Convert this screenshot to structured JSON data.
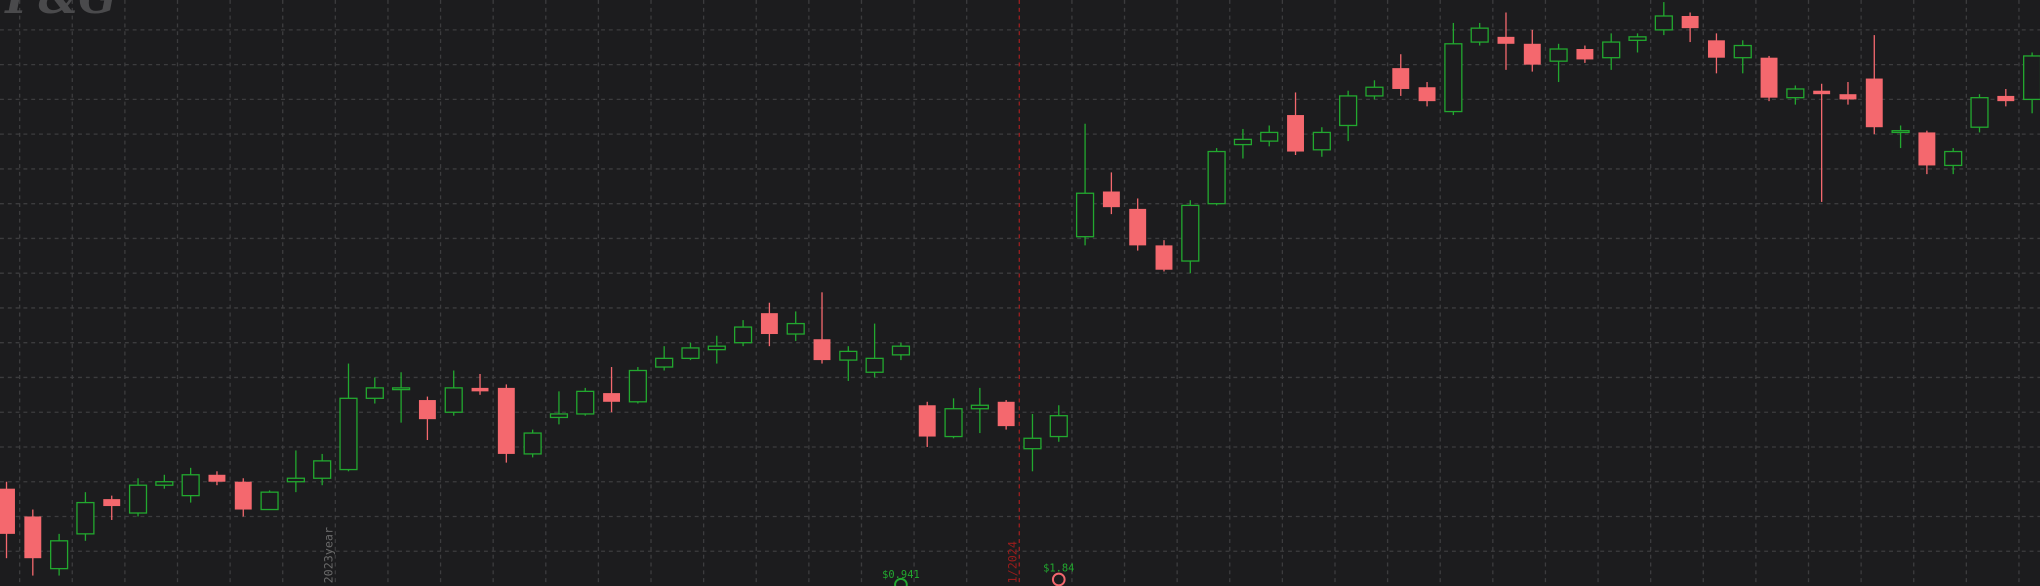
{
  "chart_data": {
    "type": "candlestick",
    "watermark": "P&G",
    "up_color": "#22a82f",
    "down_color": "#f4686e",
    "grid": true,
    "ylim": [
      144,
      160.86
    ],
    "yticks": [
      145,
      146,
      147,
      148,
      149,
      150,
      151,
      152,
      153,
      154,
      155,
      156,
      157,
      158,
      159,
      160
    ],
    "open": [
      146.8,
      146.0,
      144.5,
      145.5,
      146.5,
      146.1,
      146.9,
      146.6,
      147.2,
      147.0,
      146.2,
      147.0,
      147.1,
      147.35,
      149.4,
      149.65,
      149.35,
      149.0,
      149.7,
      149.7,
      147.8,
      148.85,
      148.95,
      149.55,
      149.3,
      150.3,
      150.55,
      150.8,
      151.0,
      151.85,
      151.25,
      151.1,
      150.5,
      150.15,
      150.65,
      149.2,
      148.3,
      149.1,
      149.3,
      147.95,
      148.3,
      154.05,
      155.35,
      154.85,
      153.8,
      153.35,
      155.0,
      156.7,
      156.8,
      157.55,
      156.55,
      157.25,
      158.1,
      158.9,
      158.35,
      157.65,
      159.65,
      159.8,
      159.6,
      159.1,
      159.45,
      159.2,
      159.7,
      160.0,
      160.4,
      159.7,
      159.2,
      159.2,
      158.05,
      158.25,
      158.15,
      158.6,
      157.05,
      157.05,
      156.1,
      157.2,
      158.1,
      158.0
    ],
    "high": [
      147.0,
      146.2,
      145.5,
      146.7,
      146.6,
      147.1,
      147.2,
      147.4,
      147.3,
      147.1,
      146.75,
      147.9,
      147.8,
      150.4,
      150.0,
      150.15,
      149.45,
      150.2,
      150.1,
      149.8,
      148.5,
      149.6,
      149.7,
      150.3,
      150.3,
      150.9,
      151.0,
      151.2,
      151.65,
      152.15,
      151.9,
      152.45,
      150.9,
      151.55,
      151.0,
      149.3,
      149.4,
      149.7,
      149.35,
      148.95,
      149.2,
      157.3,
      155.9,
      155.15,
      153.95,
      155.1,
      156.6,
      157.15,
      157.25,
      158.2,
      157.2,
      158.25,
      158.55,
      159.3,
      158.5,
      160.2,
      160.2,
      160.5,
      160.0,
      159.6,
      159.55,
      159.9,
      159.9,
      160.8,
      160.5,
      159.9,
      159.7,
      159.25,
      158.4,
      158.45,
      158.5,
      159.85,
      157.25,
      157.1,
      156.6,
      158.15,
      158.3,
      159.35
    ],
    "low": [
      144.8,
      144.3,
      144.3,
      145.3,
      145.9,
      146.0,
      146.8,
      146.4,
      146.9,
      146.0,
      146.2,
      146.7,
      146.9,
      147.3,
      149.25,
      148.7,
      148.2,
      148.9,
      149.5,
      147.55,
      147.7,
      148.65,
      148.9,
      149.0,
      149.25,
      150.2,
      150.5,
      150.4,
      150.9,
      150.9,
      151.05,
      150.4,
      149.9,
      150.0,
      150.5,
      148.0,
      148.25,
      148.4,
      148.5,
      147.3,
      148.15,
      153.8,
      154.7,
      153.65,
      153.05,
      153.0,
      154.95,
      156.3,
      156.65,
      156.4,
      156.35,
      156.8,
      158.0,
      158.1,
      157.8,
      157.55,
      159.55,
      158.85,
      158.8,
      158.5,
      159.05,
      158.85,
      159.35,
      159.85,
      159.65,
      158.75,
      158.75,
      157.95,
      157.85,
      155.05,
      157.85,
      157.0,
      156.6,
      155.85,
      155.85,
      157.05,
      157.8,
      157.6
    ],
    "close": [
      145.5,
      144.8,
      145.3,
      146.4,
      146.3,
      146.9,
      147.0,
      147.2,
      147.0,
      146.2,
      146.7,
      147.1,
      147.6,
      149.4,
      149.7,
      149.7,
      148.8,
      149.7,
      149.6,
      147.8,
      148.4,
      148.95,
      149.6,
      149.3,
      150.2,
      150.55,
      150.85,
      150.9,
      151.45,
      151.25,
      151.55,
      150.5,
      150.75,
      150.55,
      150.9,
      148.3,
      149.1,
      149.2,
      148.6,
      148.25,
      148.9,
      155.3,
      154.9,
      153.8,
      153.1,
      154.95,
      156.5,
      156.85,
      157.05,
      156.5,
      157.05,
      158.1,
      158.35,
      158.3,
      157.95,
      159.6,
      160.05,
      159.6,
      159.0,
      159.45,
      159.15,
      159.65,
      159.8,
      160.4,
      160.05,
      159.2,
      159.55,
      158.05,
      158.3,
      158.15,
      158.0,
      157.2,
      157.1,
      156.1,
      156.5,
      158.05,
      157.95,
      159.25
    ],
    "separators": [
      {
        "label": "2023year",
        "after": 12,
        "color": "#6a6a6a"
      },
      {
        "label": "1/2024",
        "after": 38,
        "color": "#9b1c1c"
      }
    ],
    "events": [
      {
        "label": "$0.941",
        "at": 34,
        "color": "#22a82f"
      },
      {
        "label": "$1.84",
        "at": 40,
        "color": "#f4686e"
      }
    ]
  }
}
